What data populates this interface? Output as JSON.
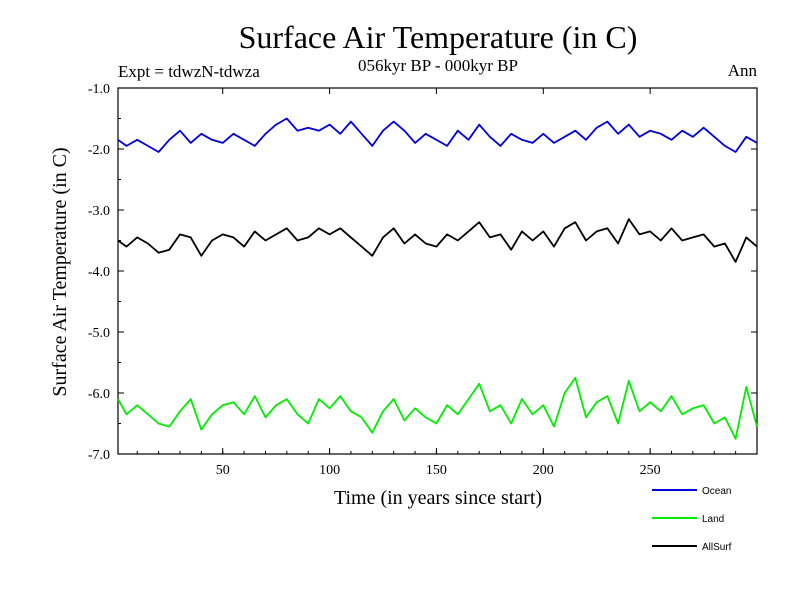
{
  "chart_data": {
    "type": "line",
    "title": "Surface Air Temperature (in C)",
    "subtitle": "056kyr BP - 000kyr BP",
    "top_left_label": "Expt = tdwzN-tdwza",
    "top_right_label": "Ann",
    "xlabel": "Time (in years since start)",
    "ylabel": "Surface Air Temperature (in C)",
    "xlim": [
      1,
      300
    ],
    "ylim": [
      -7.0,
      -1.0
    ],
    "x_ticks": [
      50,
      100,
      150,
      200,
      250
    ],
    "y_ticks": [
      -1.0,
      -2.0,
      -3.0,
      -4.0,
      -5.0,
      -6.0,
      -7.0
    ],
    "y_tick_labels": [
      "-1.0",
      "-2.0",
      "-3.0",
      "-4.0",
      "-5.0",
      "-6.0",
      "-7.0"
    ],
    "legend_position": "bottom-right",
    "grid": false,
    "series": [
      {
        "name": "Ocean",
        "color": "#0000dd",
        "points": [
          [
            1,
            -1.85
          ],
          [
            5,
            -1.95
          ],
          [
            10,
            -1.85
          ],
          [
            15,
            -1.95
          ],
          [
            20,
            -2.05
          ],
          [
            25,
            -1.85
          ],
          [
            30,
            -1.7
          ],
          [
            35,
            -1.9
          ],
          [
            40,
            -1.75
          ],
          [
            45,
            -1.85
          ],
          [
            50,
            -1.9
          ],
          [
            55,
            -1.75
          ],
          [
            60,
            -1.85
          ],
          [
            65,
            -1.95
          ],
          [
            70,
            -1.75
          ],
          [
            75,
            -1.6
          ],
          [
            80,
            -1.5
          ],
          [
            85,
            -1.7
          ],
          [
            90,
            -1.65
          ],
          [
            95,
            -1.7
          ],
          [
            100,
            -1.6
          ],
          [
            105,
            -1.75
          ],
          [
            110,
            -1.55
          ],
          [
            115,
            -1.75
          ],
          [
            120,
            -1.95
          ],
          [
            125,
            -1.7
          ],
          [
            130,
            -1.55
          ],
          [
            135,
            -1.7
          ],
          [
            140,
            -1.9
          ],
          [
            145,
            -1.75
          ],
          [
            150,
            -1.85
          ],
          [
            155,
            -1.95
          ],
          [
            160,
            -1.7
          ],
          [
            165,
            -1.85
          ],
          [
            170,
            -1.6
          ],
          [
            175,
            -1.8
          ],
          [
            180,
            -1.95
          ],
          [
            185,
            -1.75
          ],
          [
            190,
            -1.85
          ],
          [
            195,
            -1.9
          ],
          [
            200,
            -1.75
          ],
          [
            205,
            -1.9
          ],
          [
            210,
            -1.8
          ],
          [
            215,
            -1.7
          ],
          [
            220,
            -1.85
          ],
          [
            225,
            -1.65
          ],
          [
            230,
            -1.55
          ],
          [
            235,
            -1.75
          ],
          [
            240,
            -1.6
          ],
          [
            245,
            -1.8
          ],
          [
            250,
            -1.7
          ],
          [
            255,
            -1.75
          ],
          [
            260,
            -1.85
          ],
          [
            265,
            -1.7
          ],
          [
            270,
            -1.8
          ],
          [
            275,
            -1.65
          ],
          [
            280,
            -1.8
          ],
          [
            285,
            -1.95
          ],
          [
            290,
            -2.05
          ],
          [
            295,
            -1.8
          ],
          [
            300,
            -1.9
          ]
        ]
      },
      {
        "name": "Land",
        "color": "#00ee00",
        "points": [
          [
            1,
            -6.1
          ],
          [
            5,
            -6.35
          ],
          [
            10,
            -6.2
          ],
          [
            15,
            -6.35
          ],
          [
            20,
            -6.5
          ],
          [
            25,
            -6.55
          ],
          [
            30,
            -6.3
          ],
          [
            35,
            -6.1
          ],
          [
            40,
            -6.6
          ],
          [
            45,
            -6.35
          ],
          [
            50,
            -6.2
          ],
          [
            55,
            -6.15
          ],
          [
            60,
            -6.35
          ],
          [
            65,
            -6.05
          ],
          [
            70,
            -6.4
          ],
          [
            75,
            -6.2
          ],
          [
            80,
            -6.1
          ],
          [
            85,
            -6.35
          ],
          [
            90,
            -6.5
          ],
          [
            95,
            -6.1
          ],
          [
            100,
            -6.25
          ],
          [
            105,
            -6.05
          ],
          [
            110,
            -6.3
          ],
          [
            115,
            -6.4
          ],
          [
            120,
            -6.65
          ],
          [
            125,
            -6.3
          ],
          [
            130,
            -6.1
          ],
          [
            135,
            -6.45
          ],
          [
            140,
            -6.25
          ],
          [
            145,
            -6.4
          ],
          [
            150,
            -6.5
          ],
          [
            155,
            -6.2
          ],
          [
            160,
            -6.35
          ],
          [
            165,
            -6.1
          ],
          [
            170,
            -5.85
          ],
          [
            175,
            -6.3
          ],
          [
            180,
            -6.2
          ],
          [
            185,
            -6.5
          ],
          [
            190,
            -6.1
          ],
          [
            195,
            -6.35
          ],
          [
            200,
            -6.2
          ],
          [
            205,
            -6.55
          ],
          [
            210,
            -6.0
          ],
          [
            215,
            -5.75
          ],
          [
            220,
            -6.4
          ],
          [
            225,
            -6.15
          ],
          [
            230,
            -6.05
          ],
          [
            235,
            -6.5
          ],
          [
            240,
            -5.8
          ],
          [
            245,
            -6.3
          ],
          [
            250,
            -6.15
          ],
          [
            255,
            -6.3
          ],
          [
            260,
            -6.05
          ],
          [
            265,
            -6.35
          ],
          [
            270,
            -6.25
          ],
          [
            275,
            -6.2
          ],
          [
            280,
            -6.5
          ],
          [
            285,
            -6.4
          ],
          [
            290,
            -6.75
          ],
          [
            295,
            -5.9
          ],
          [
            300,
            -6.55
          ]
        ]
      },
      {
        "name": "AllSurf",
        "color": "#000000",
        "points": [
          [
            1,
            -3.5
          ],
          [
            5,
            -3.6
          ],
          [
            10,
            -3.45
          ],
          [
            15,
            -3.55
          ],
          [
            20,
            -3.7
          ],
          [
            25,
            -3.65
          ],
          [
            30,
            -3.4
          ],
          [
            35,
            -3.45
          ],
          [
            40,
            -3.75
          ],
          [
            45,
            -3.5
          ],
          [
            50,
            -3.4
          ],
          [
            55,
            -3.45
          ],
          [
            60,
            -3.6
          ],
          [
            65,
            -3.35
          ],
          [
            70,
            -3.5
          ],
          [
            75,
            -3.4
          ],
          [
            80,
            -3.3
          ],
          [
            85,
            -3.5
          ],
          [
            90,
            -3.45
          ],
          [
            95,
            -3.3
          ],
          [
            100,
            -3.4
          ],
          [
            105,
            -3.3
          ],
          [
            110,
            -3.45
          ],
          [
            115,
            -3.6
          ],
          [
            120,
            -3.75
          ],
          [
            125,
            -3.45
          ],
          [
            130,
            -3.3
          ],
          [
            135,
            -3.55
          ],
          [
            140,
            -3.4
          ],
          [
            145,
            -3.55
          ],
          [
            150,
            -3.6
          ],
          [
            155,
            -3.4
          ],
          [
            160,
            -3.5
          ],
          [
            165,
            -3.35
          ],
          [
            170,
            -3.2
          ],
          [
            175,
            -3.45
          ],
          [
            180,
            -3.4
          ],
          [
            185,
            -3.65
          ],
          [
            190,
            -3.35
          ],
          [
            195,
            -3.5
          ],
          [
            200,
            -3.35
          ],
          [
            205,
            -3.6
          ],
          [
            210,
            -3.3
          ],
          [
            215,
            -3.2
          ],
          [
            220,
            -3.5
          ],
          [
            225,
            -3.35
          ],
          [
            230,
            -3.3
          ],
          [
            235,
            -3.55
          ],
          [
            240,
            -3.15
          ],
          [
            245,
            -3.4
          ],
          [
            250,
            -3.35
          ],
          [
            255,
            -3.5
          ],
          [
            260,
            -3.3
          ],
          [
            265,
            -3.5
          ],
          [
            270,
            -3.45
          ],
          [
            275,
            -3.4
          ],
          [
            280,
            -3.6
          ],
          [
            285,
            -3.55
          ],
          [
            290,
            -3.85
          ],
          [
            295,
            -3.45
          ],
          [
            300,
            -3.6
          ]
        ]
      }
    ]
  }
}
